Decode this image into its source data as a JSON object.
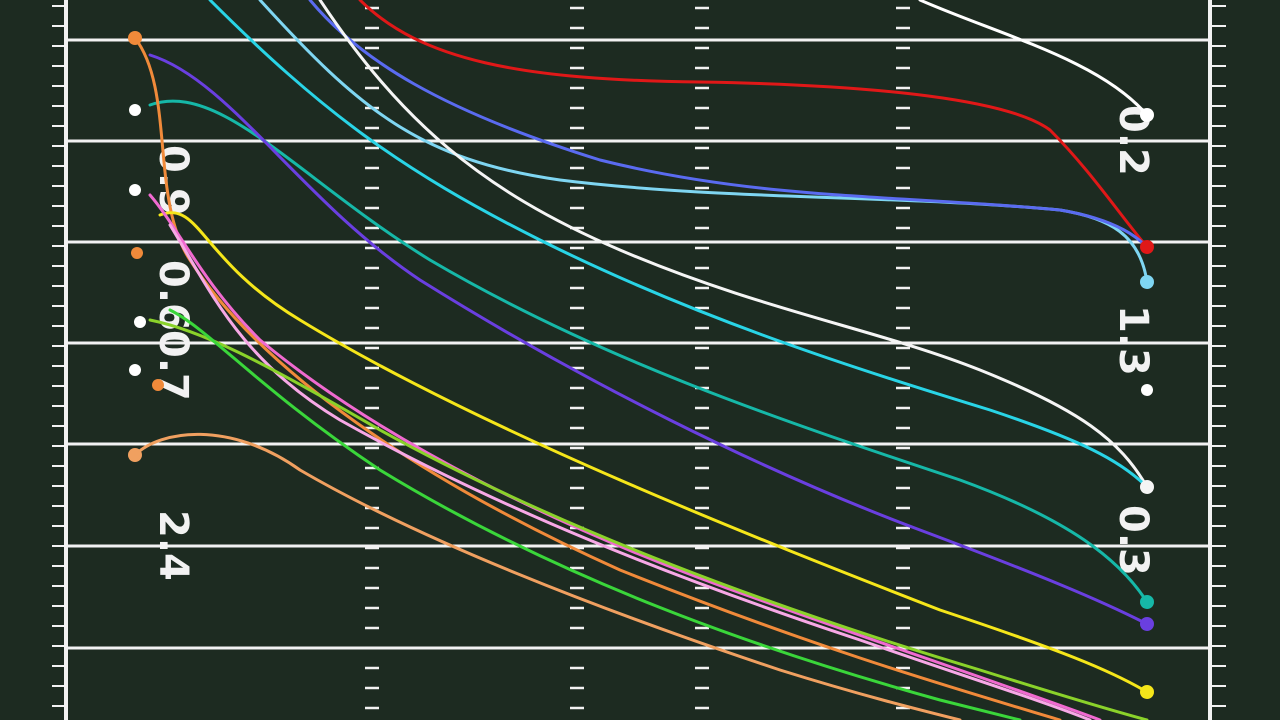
{
  "field": {
    "background_color": "#1b2a20",
    "line_color": "#f2f2f2",
    "left_labels": [
      "0.9",
      "0.6",
      "0.7",
      "2.4"
    ],
    "right_labels": [
      "0.2",
      "1.3",
      "0.3"
    ]
  },
  "routes": [
    {
      "name": "red",
      "color": "#e01818"
    },
    {
      "name": "white-top",
      "color": "#ffffff"
    },
    {
      "name": "light-blue",
      "color": "#7fd6f2"
    },
    {
      "name": "blue-violet",
      "color": "#5a6bf0"
    },
    {
      "name": "white-mid",
      "color": "#f5f5f5"
    },
    {
      "name": "cyan",
      "color": "#29d4e6"
    },
    {
      "name": "teal",
      "color": "#16b8a8"
    },
    {
      "name": "violet",
      "color": "#6a3fe0"
    },
    {
      "name": "orange-upper",
      "color": "#f08a3a"
    },
    {
      "name": "yellow",
      "color": "#f5e61a"
    },
    {
      "name": "pink",
      "color": "#f06ad0"
    },
    {
      "name": "light-pink",
      "color": "#f7a8e6"
    },
    {
      "name": "lime",
      "color": "#8ad22a"
    },
    {
      "name": "green",
      "color": "#3ad63a"
    },
    {
      "name": "orange-lower",
      "color": "#f0a060"
    }
  ]
}
